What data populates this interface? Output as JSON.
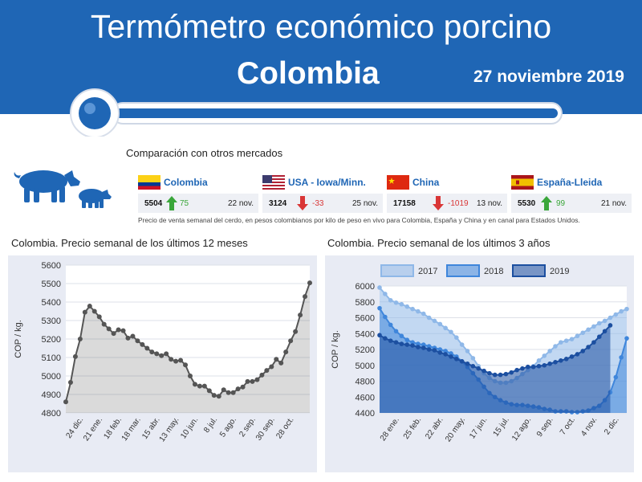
{
  "header": {
    "title": "Termómetro económico porcino",
    "country": "Colombia",
    "date": "27 noviembre 2019"
  },
  "comparison": {
    "title": "Comparación con otros mercados",
    "note": "Precio de venta semanal del cerdo, en pesos colombianos por kilo de peso en vivo para Colombia, España y China y en canal para Estados Unidos.",
    "markets": [
      {
        "name": "Colombia",
        "value": "5504",
        "change": "75",
        "direction": "up",
        "date": "22 nov.",
        "flag": "colombia-flag-icon"
      },
      {
        "name": "USA - Iowa/Minn.",
        "value": "3124",
        "change": "-33",
        "direction": "down",
        "date": "25 nov.",
        "flag": "usa-flag-icon"
      },
      {
        "name": "China",
        "value": "17158",
        "change": "-1019",
        "direction": "down",
        "date": "13 nov.",
        "flag": "china-flag-icon"
      },
      {
        "name": "España-Lleida",
        "value": "5530",
        "change": "99",
        "direction": "up",
        "date": "21 nov.",
        "flag": "spain-flag-icon"
      }
    ],
    "colors": {
      "up": "#3aa63a",
      "down": "#d93636",
      "brand": "#1f66b5"
    }
  },
  "chart_data": [
    {
      "type": "area",
      "title": "Colombia. Precio semanal de los últimos 12 meses",
      "ylabel": "COP / kg.",
      "ylim": [
        4800,
        5600
      ],
      "yticks": [
        4800,
        4900,
        5000,
        5100,
        5200,
        5300,
        5400,
        5500,
        5600
      ],
      "xtick_labels": [
        "24 dic.",
        "21 ene.",
        "18 feb.",
        "18 mar.",
        "15 abr.",
        "13 may.",
        "10 jun.",
        "8 jul.",
        "5 ago.",
        "2 sep.",
        "30 sep.",
        "28 oct."
      ],
      "xtick_index": [
        3,
        7,
        11,
        15,
        19,
        23,
        27,
        31,
        35,
        39,
        43,
        47
      ],
      "values": [
        4860,
        4965,
        5105,
        5200,
        5345,
        5378,
        5350,
        5320,
        5280,
        5255,
        5230,
        5250,
        5245,
        5205,
        5215,
        5190,
        5170,
        5150,
        5130,
        5120,
        5110,
        5120,
        5090,
        5080,
        5085,
        5060,
        5000,
        4955,
        4945,
        4945,
        4920,
        4895,
        4890,
        4925,
        4910,
        4910,
        4930,
        4940,
        4970,
        4970,
        4980,
        5005,
        5030,
        5050,
        5090,
        5070,
        5130,
        5190,
        5240,
        5330,
        5430,
        5504
      ],
      "color": "#555555"
    },
    {
      "type": "area",
      "title": "Colombia. Precio semanal de los últimos 3 años",
      "ylabel": "COP / kg.",
      "ylim": [
        4400,
        6000
      ],
      "yticks": [
        4400,
        4600,
        4800,
        5000,
        5200,
        5400,
        5600,
        5800,
        6000
      ],
      "xtick_labels": [
        "28 ene.",
        "25 feb.",
        "22 abr.",
        "20 may.",
        "17 jun.",
        "15 jul.",
        "12 ago.",
        "9 sep.",
        "7 oct.",
        "4 nov.",
        "2 dic."
      ],
      "xtick_index": [
        3,
        7,
        11,
        15,
        19,
        23,
        27,
        31,
        35,
        39,
        43
      ],
      "legend": [
        "2017",
        "2018",
        "2019"
      ],
      "series": [
        {
          "name": "2017",
          "color": "#8fb8e8",
          "values": [
            5980,
            5900,
            5820,
            5790,
            5770,
            5740,
            5710,
            5680,
            5650,
            5600,
            5560,
            5520,
            5470,
            5420,
            5350,
            5260,
            5180,
            5090,
            4990,
            4900,
            4840,
            4800,
            4780,
            4780,
            4800,
            4840,
            4890,
            4940,
            4990,
            5060,
            5120,
            5180,
            5240,
            5290,
            5310,
            5330,
            5370,
            5410,
            5450,
            5490,
            5530,
            5560,
            5600,
            5640,
            5680,
            5710
          ]
        },
        {
          "name": "2018",
          "color": "#3f86db",
          "values": [
            5720,
            5610,
            5510,
            5430,
            5370,
            5320,
            5290,
            5270,
            5260,
            5240,
            5220,
            5200,
            5180,
            5150,
            5110,
            5050,
            4980,
            4900,
            4820,
            4730,
            4650,
            4600,
            4560,
            4530,
            4510,
            4500,
            4500,
            4490,
            4480,
            4470,
            4450,
            4440,
            4420,
            4420,
            4420,
            4410,
            4410,
            4420,
            4430,
            4460,
            4490,
            4560,
            4660,
            4850,
            5100,
            5340
          ]
        },
        {
          "name": "2019",
          "color": "#1c4fa0",
          "values": [
            5380,
            5340,
            5310,
            5290,
            5270,
            5260,
            5250,
            5230,
            5220,
            5200,
            5190,
            5160,
            5140,
            5110,
            5080,
            5050,
            5020,
            4990,
            4960,
            4930,
            4900,
            4880,
            4880,
            4890,
            4910,
            4940,
            4960,
            4980,
            4980,
            4990,
            5000,
            5020,
            5040,
            5060,
            5080,
            5110,
            5140,
            5180,
            5230,
            5290,
            5360,
            5430,
            5504
          ]
        }
      ]
    }
  ]
}
